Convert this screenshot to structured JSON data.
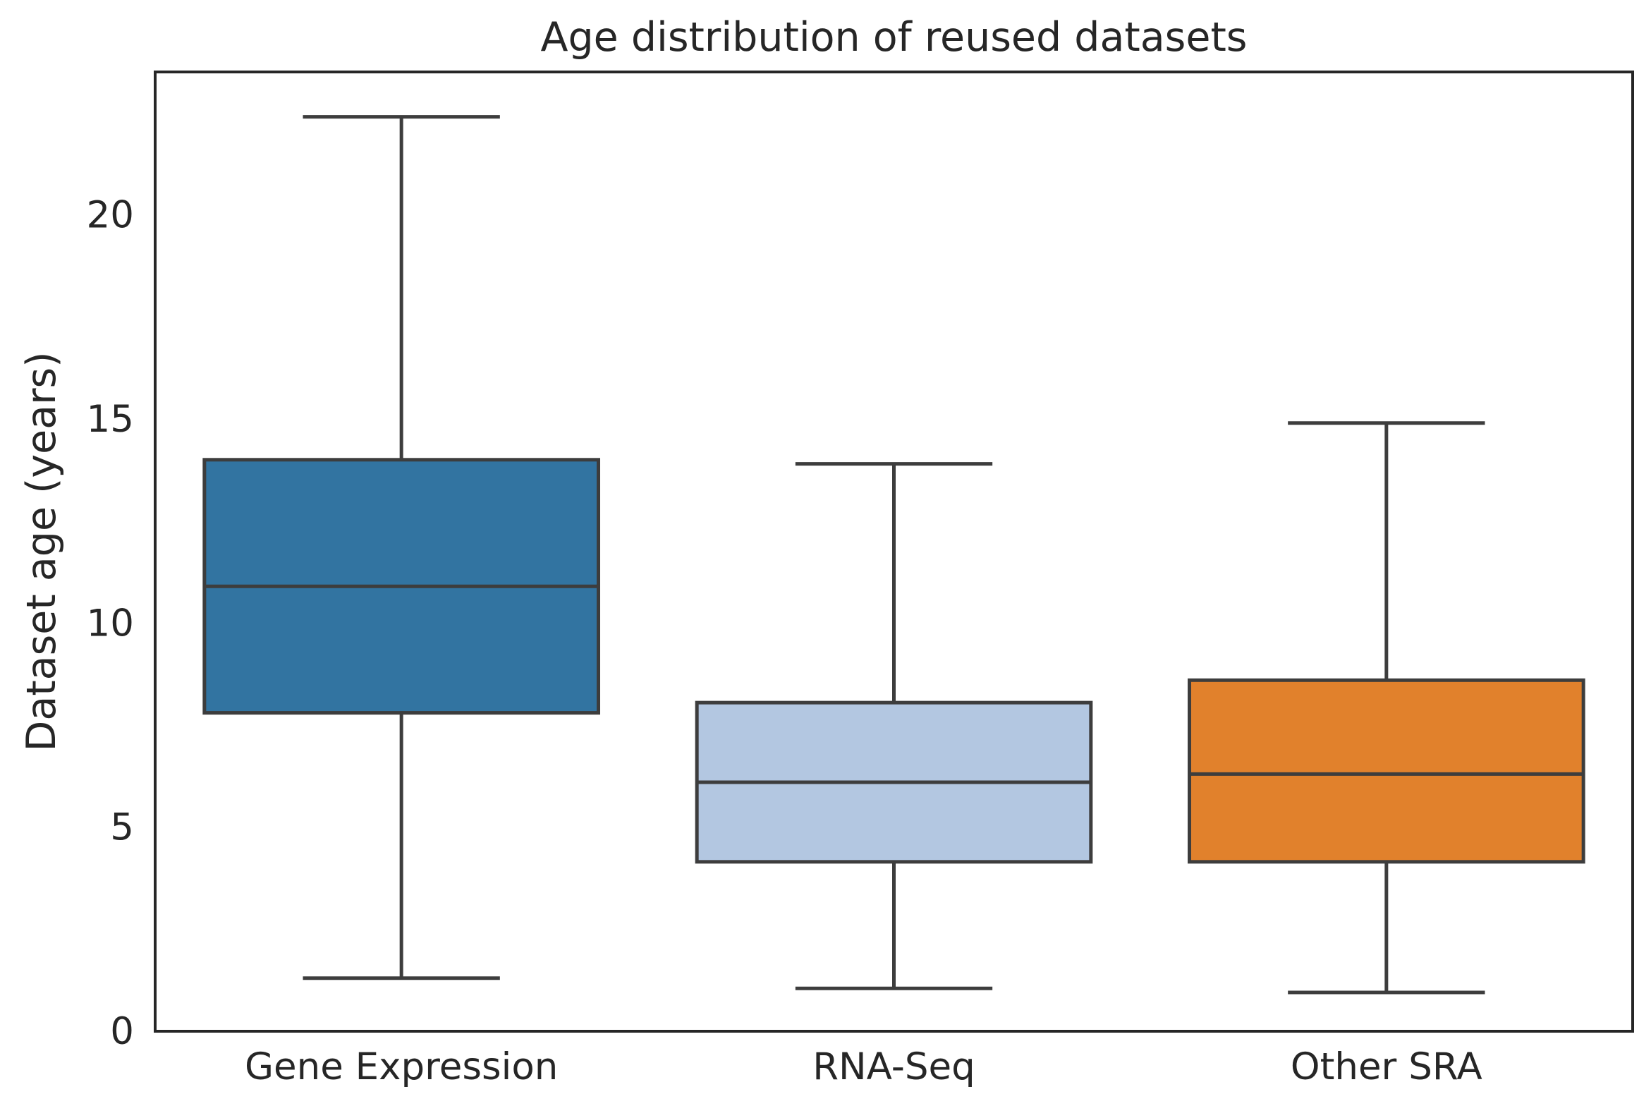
{
  "chart_data": {
    "type": "box",
    "title": "Age distribution of reused datasets",
    "xlabel": "",
    "ylabel": "Dataset age (years)",
    "ylim": [
      0,
      23.5
    ],
    "yticks": [
      "0",
      "5",
      "10",
      "15",
      "20"
    ],
    "yticks_values": [
      0,
      5,
      10,
      15,
      20
    ],
    "grid": false,
    "categories": [
      "Gene Expression",
      "RNA-Seq",
      "Other SRA"
    ],
    "boxes": [
      {
        "whisker_low": 1.3,
        "q1": 7.8,
        "median": 10.9,
        "q3": 14.0,
        "whisker_high": 22.4
      },
      {
        "whisker_low": 1.05,
        "q1": 4.15,
        "median": 6.1,
        "q3": 8.05,
        "whisker_high": 13.9
      },
      {
        "whisker_low": 0.95,
        "q1": 4.15,
        "median": 6.3,
        "q3": 8.6,
        "whisker_high": 14.9
      }
    ],
    "colors": [
      "#3274a1",
      "#b3c7e1",
      "#e1812c"
    ],
    "line_color": "#3d3d3d",
    "frame_color": "#262626"
  }
}
